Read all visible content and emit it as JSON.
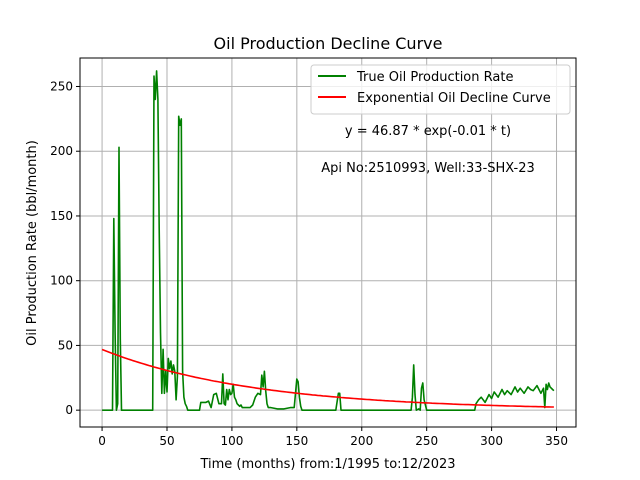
{
  "chart_data": {
    "type": "line",
    "title": "Oil Production Decline Curve",
    "xlabel": "Time (months) from:1/1995 to:12/2023",
    "ylabel": "Oil Production Rate (bbl/month)",
    "xlim": [
      -17,
      365
    ],
    "ylim": [
      -13,
      272
    ],
    "xticks": [
      0,
      50,
      100,
      150,
      200,
      250,
      300,
      350
    ],
    "yticks": [
      0,
      50,
      100,
      150,
      200,
      250
    ],
    "grid": true,
    "legend_position": "top-right",
    "annotations": [
      {
        "text": "y = 46.87 * exp(-0.01 * t)"
      },
      {
        "text": "Api No:2510993, Well:33-SHX-23"
      }
    ],
    "series": [
      {
        "name": "True Oil Production Rate",
        "color": "#008000",
        "x": [
          0,
          8,
          9,
          10,
          11,
          12,
          13,
          14,
          15,
          39,
          40,
          41,
          42,
          43,
          44,
          45,
          46,
          47,
          48,
          49,
          50,
          51,
          52,
          53,
          54,
          55,
          56,
          57,
          58,
          59,
          60,
          61,
          62,
          63,
          64,
          65,
          66,
          67,
          75,
          76,
          80,
          82,
          84,
          86,
          88,
          90,
          92,
          93,
          94,
          95,
          96,
          97,
          98,
          99,
          100,
          101,
          102,
          103,
          104,
          105,
          106,
          107,
          108,
          110,
          112,
          114,
          116,
          118,
          120,
          122,
          123,
          124,
          125,
          126,
          127,
          128,
          129,
          130,
          135,
          140,
          145,
          148,
          150,
          151,
          152,
          153,
          154,
          160,
          170,
          180,
          182,
          183,
          184,
          190,
          200,
          210,
          220,
          230,
          235,
          237,
          238,
          239,
          240,
          241,
          242,
          244,
          245,
          246,
          247,
          248,
          250,
          260,
          270,
          280,
          285,
          287,
          288,
          290,
          292,
          295,
          298,
          300,
          302,
          305,
          308,
          310,
          312,
          315,
          318,
          320,
          322,
          325,
          328,
          330,
          332,
          335,
          338,
          340,
          341,
          342,
          343,
          344,
          345,
          346,
          347,
          348
        ],
        "y": [
          0,
          0,
          148,
          60,
          0,
          5,
          203,
          55,
          0,
          0,
          258,
          240,
          262,
          240,
          140,
          60,
          13,
          47,
          13,
          30,
          14,
          40,
          32,
          38,
          28,
          35,
          30,
          8,
          26,
          227,
          220,
          225,
          30,
          10,
          5,
          3,
          0,
          0,
          0,
          6,
          6,
          7,
          2,
          12,
          13,
          5,
          5,
          28,
          5,
          4,
          16,
          8,
          16,
          12,
          13,
          20,
          10,
          8,
          5,
          4,
          3,
          4,
          2,
          2,
          2,
          2,
          4,
          10,
          13,
          12,
          27,
          18,
          30,
          15,
          5,
          2,
          2,
          2,
          1,
          1,
          2,
          2,
          24,
          22,
          10,
          3,
          0,
          0,
          0,
          0,
          13,
          13,
          0,
          0,
          0,
          0,
          0,
          0,
          0,
          0,
          0,
          10,
          35,
          12,
          0,
          1,
          0,
          17,
          21,
          8,
          0,
          0,
          0,
          0,
          0,
          0,
          5,
          8,
          10,
          6,
          12,
          9,
          14,
          10,
          16,
          12,
          15,
          12,
          18,
          14,
          17,
          13,
          18,
          16,
          15,
          19,
          13,
          17,
          2,
          20,
          16,
          21,
          18,
          17,
          16,
          15
        ]
      },
      {
        "name": "Exponential Oil Decline Curve",
        "color": "#ff0000",
        "type": "exponential",
        "a": 46.87,
        "b": -0.0085,
        "x_range": [
          0,
          348
        ]
      }
    ]
  }
}
